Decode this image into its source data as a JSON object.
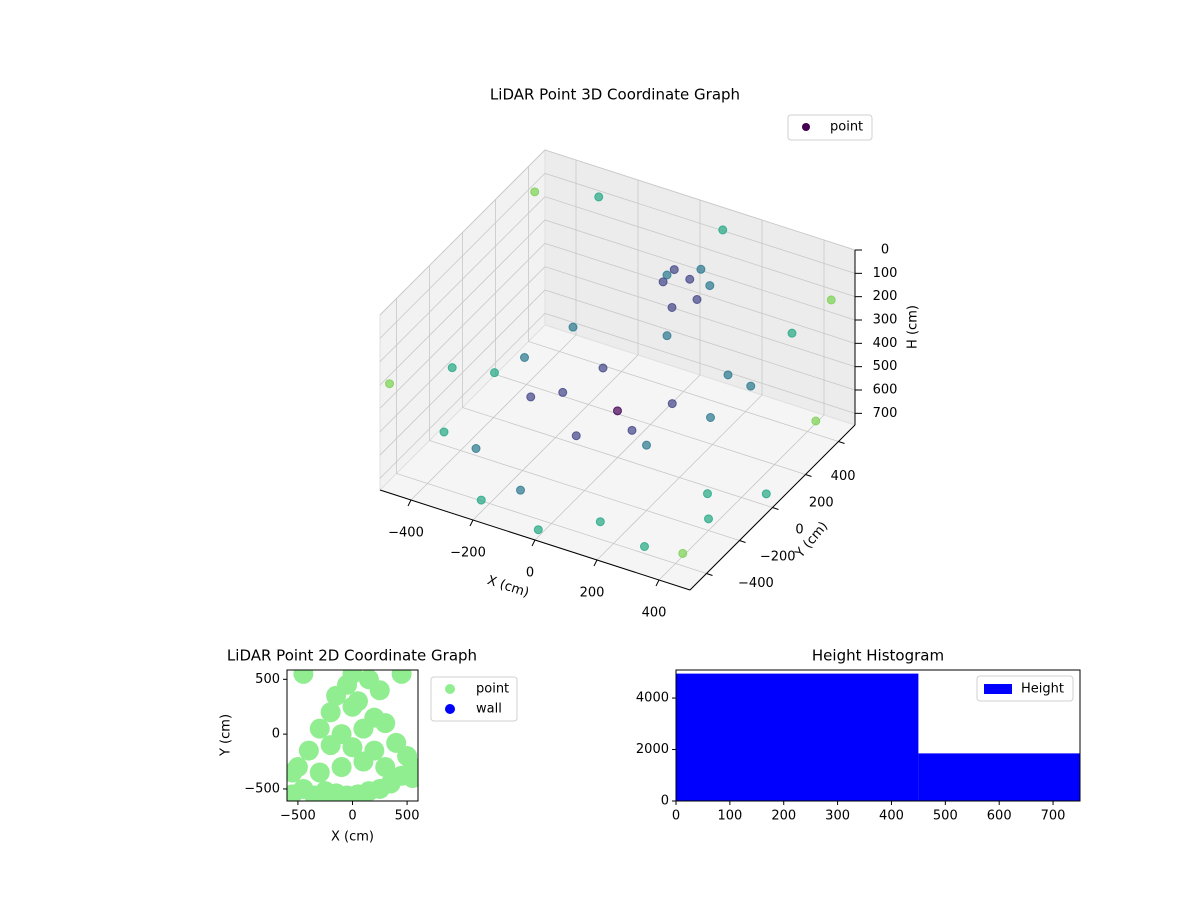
{
  "chart_data": [
    {
      "type": "scatter3d",
      "title": "LiDAR Point 3D Coordinate Graph",
      "xlabel": "X (cm)",
      "ylabel": "Y (cm)",
      "zlabel": "H (cm)",
      "xlim": [
        -500,
        500
      ],
      "ylim": [
        -500,
        500
      ],
      "zlim": [
        750,
        0
      ],
      "xticks": [
        {
          "value": -400,
          "label": "−400"
        },
        {
          "value": -200,
          "label": "−200"
        },
        0,
        200,
        400
      ],
      "yticks": [
        {
          "value": -400,
          "label": "−400"
        },
        {
          "value": -200,
          "label": "−200"
        },
        0,
        200,
        400
      ],
      "zticks": [
        0,
        100,
        200,
        300,
        400,
        500,
        600,
        700
      ],
      "colormap": [
        "#440154",
        "#414487",
        "#2a788e",
        "#22a884",
        "#7ad151"
      ],
      "grid": true,
      "legend": "upper right",
      "series": [
        {
          "name": "point",
          "color": "#440154",
          "x": [
            50,
            100,
            150,
            0,
            80,
            120,
            30,
            170,
            -300,
            -200,
            0,
            200,
            300,
            250,
            0,
            -250,
            -150,
            100,
            0,
            -100,
            150,
            350,
            -480,
            -480,
            -400,
            450,
            480,
            400,
            -450,
            300,
            -200,
            100,
            -300,
            450,
            -480,
            200,
            480,
            -100,
            350,
            -350,
            0,
            450
          ],
          "y": [
            250,
            250,
            200,
            300,
            180,
            280,
            220,
            240,
            0,
            -150,
            -250,
            -200,
            0,
            200,
            300,
            200,
            -50,
            -100,
            0,
            100,
            50,
            150,
            -480,
            400,
            -300,
            -450,
            300,
            -200,
            100,
            -400,
            -450,
            450,
            450,
            450,
            -100,
            -480,
            0,
            -400,
            400,
            -200,
            -480,
            -300
          ],
          "h": [
            100,
            120,
            150,
            180,
            200,
            90,
            140,
            110,
            450,
            470,
            480,
            470,
            450,
            430,
            440,
            440,
            500,
            520,
            550,
            480,
            490,
            400,
            300,
            100,
            600,
            650,
            600,
            700,
            650,
            720,
            700,
            50,
            80,
            200,
            500,
            600,
            700,
            650,
            350,
            720,
            720,
            500
          ]
        }
      ]
    },
    {
      "type": "scatter",
      "title": "LiDAR Point 2D Coordinate Graph",
      "xlabel": "X (cm)",
      "ylabel": "Y (cm)",
      "xlim": [
        -600,
        600
      ],
      "ylim": [
        -610,
        585
      ],
      "xticks": [
        {
          "value": -500,
          "label": "−500"
        },
        0,
        500
      ],
      "yticks": [
        {
          "value": -500,
          "label": "−500"
        },
        0,
        500
      ],
      "legend": "outside right",
      "series": [
        {
          "name": "point",
          "color": "#90ee90",
          "x": [
            -550,
            -450,
            -350,
            -250,
            -150,
            -50,
            50,
            150,
            250,
            350,
            450,
            550,
            -500,
            -300,
            -100,
            100,
            300,
            500,
            -400,
            -200,
            0,
            200,
            400,
            -300,
            -100,
            100,
            300,
            -200,
            0,
            200,
            -150,
            50,
            250,
            -50,
            150,
            -450,
            450,
            -550,
            550,
            0
          ],
          "y": [
            -550,
            -500,
            -560,
            -520,
            -540,
            -560,
            -550,
            -520,
            -500,
            -450,
            -380,
            -400,
            -300,
            -350,
            -300,
            -250,
            -300,
            -200,
            -150,
            -100,
            -120,
            -150,
            -80,
            50,
            0,
            50,
            100,
            200,
            250,
            150,
            350,
            300,
            400,
            450,
            500,
            550,
            550,
            -350,
            -300,
            550
          ]
        },
        {
          "name": "wall",
          "color": "#0000ff",
          "x": [],
          "y": []
        }
      ]
    },
    {
      "type": "histogram",
      "title": "Height Histogram",
      "bins": [
        0,
        450,
        750
      ],
      "values": [
        4950,
        1850
      ],
      "color": "#0000ff",
      "name": "Height",
      "xlim": [
        0,
        750
      ],
      "ylim": [
        0,
        5090
      ],
      "xticks": [
        0,
        100,
        200,
        300,
        400,
        500,
        600,
        700
      ],
      "yticks": [
        0,
        2000,
        4000
      ],
      "legend": "upper right"
    }
  ]
}
